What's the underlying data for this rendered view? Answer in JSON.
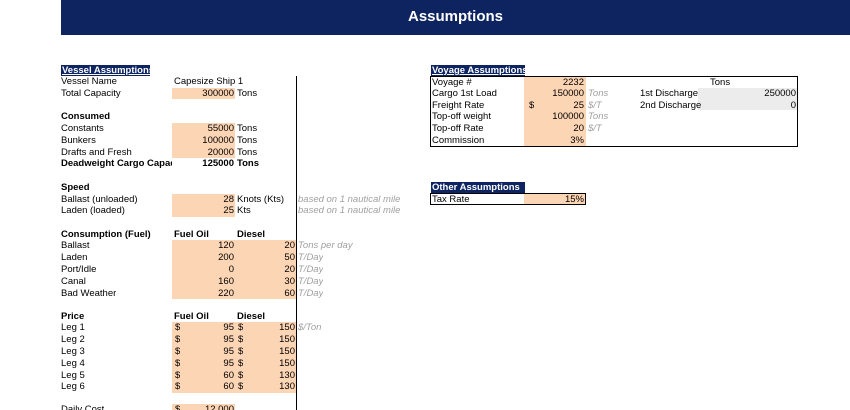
{
  "title": "Assumptions",
  "vessel": {
    "header": "Vessel Assumptions",
    "vessel_name_label": "Vessel Name",
    "vessel_name": "Capesize Ship 1",
    "capacity_label": "Total Capacity",
    "capacity": "300000",
    "capacity_unit": "Tons",
    "consumed_label": "Consumed",
    "constants_label": "Constants",
    "constants": "55000",
    "constants_unit": "Tons",
    "bunkers_label": "Bunkers",
    "bunkers": "100000",
    "bunkers_unit": "Tons",
    "drafts_label": "Drafts and Fresh",
    "drafts": "20000",
    "drafts_unit": "Tons",
    "dwt_label": "Deadweight Cargo Capac",
    "dwt": "125000",
    "dwt_unit": "Tons",
    "speed_label": "Speed",
    "ballast_speed_label": "Ballast (unloaded)",
    "ballast_speed": "28",
    "ballast_speed_unit": "Knots (Kts)",
    "ballast_speed_note": "based on 1 nautical mile",
    "laden_speed_label": "Laden (loaded)",
    "laden_speed": "25",
    "laden_speed_unit": "Kts",
    "laden_speed_note": "based on 1 nautical mile",
    "consumption_label": "Consumption (Fuel)",
    "fuel_oil_label": "Fuel Oil",
    "diesel_label": "Diesel",
    "consumption_rows": [
      {
        "label": "Ballast",
        "fuel": "120",
        "diesel": "20",
        "unit": "Tons per day"
      },
      {
        "label": "Laden",
        "fuel": "200",
        "diesel": "50",
        "unit": "T/Day"
      },
      {
        "label": "Port/Idle",
        "fuel": "0",
        "diesel": "20",
        "unit": "T/Day"
      },
      {
        "label": "Canal",
        "fuel": "160",
        "diesel": "30",
        "unit": "T/Day"
      },
      {
        "label": "Bad Weather",
        "fuel": "220",
        "diesel": "60",
        "unit": "T/Day"
      }
    ],
    "price_label": "Price",
    "price_fuel_label": "Fuel Oil",
    "price_diesel_label": "Diesel",
    "currency": "$",
    "price_rows": [
      {
        "label": "Leg 1",
        "fuel": "95",
        "diesel": "150",
        "unit": "$/Ton"
      },
      {
        "label": "Leg 2",
        "fuel": "95",
        "diesel": "150",
        "unit": ""
      },
      {
        "label": "Leg 3",
        "fuel": "95",
        "diesel": "150",
        "unit": ""
      },
      {
        "label": "Leg 4",
        "fuel": "95",
        "diesel": "150",
        "unit": ""
      },
      {
        "label": "Leg 5",
        "fuel": "60",
        "diesel": "130",
        "unit": ""
      },
      {
        "label": "Leg 6",
        "fuel": "60",
        "diesel": "130",
        "unit": ""
      }
    ],
    "daily_cost_label": "Daily Cost",
    "daily_cost": "12,000"
  },
  "voyage": {
    "header": "Voyage Assumptions",
    "voyage_no_label": "Voyage #",
    "voyage_no": "2232",
    "cargo_label": "Cargo 1st Load",
    "cargo": "150000",
    "cargo_unit": "Tons",
    "freight_label": "Freight Rate",
    "freight_currency": "$",
    "freight": "25",
    "freight_unit": "$/T",
    "topoff_weight_label": "Top-off weight",
    "topoff_weight": "100000",
    "topoff_weight_unit": "Tons",
    "topoff_rate_label": "Top-off Rate",
    "topoff_rate": "20",
    "topoff_rate_unit": "$/T",
    "commission_label": "Commission",
    "commission": "3%",
    "tons_header": "Tons",
    "discharge1_label": "1st Discharge",
    "discharge1": "250000",
    "discharge2_label": "2nd Discharge",
    "discharge2": "0"
  },
  "other": {
    "header": "Other Assumptions",
    "tax_label": "Tax Rate",
    "tax": "15%"
  }
}
